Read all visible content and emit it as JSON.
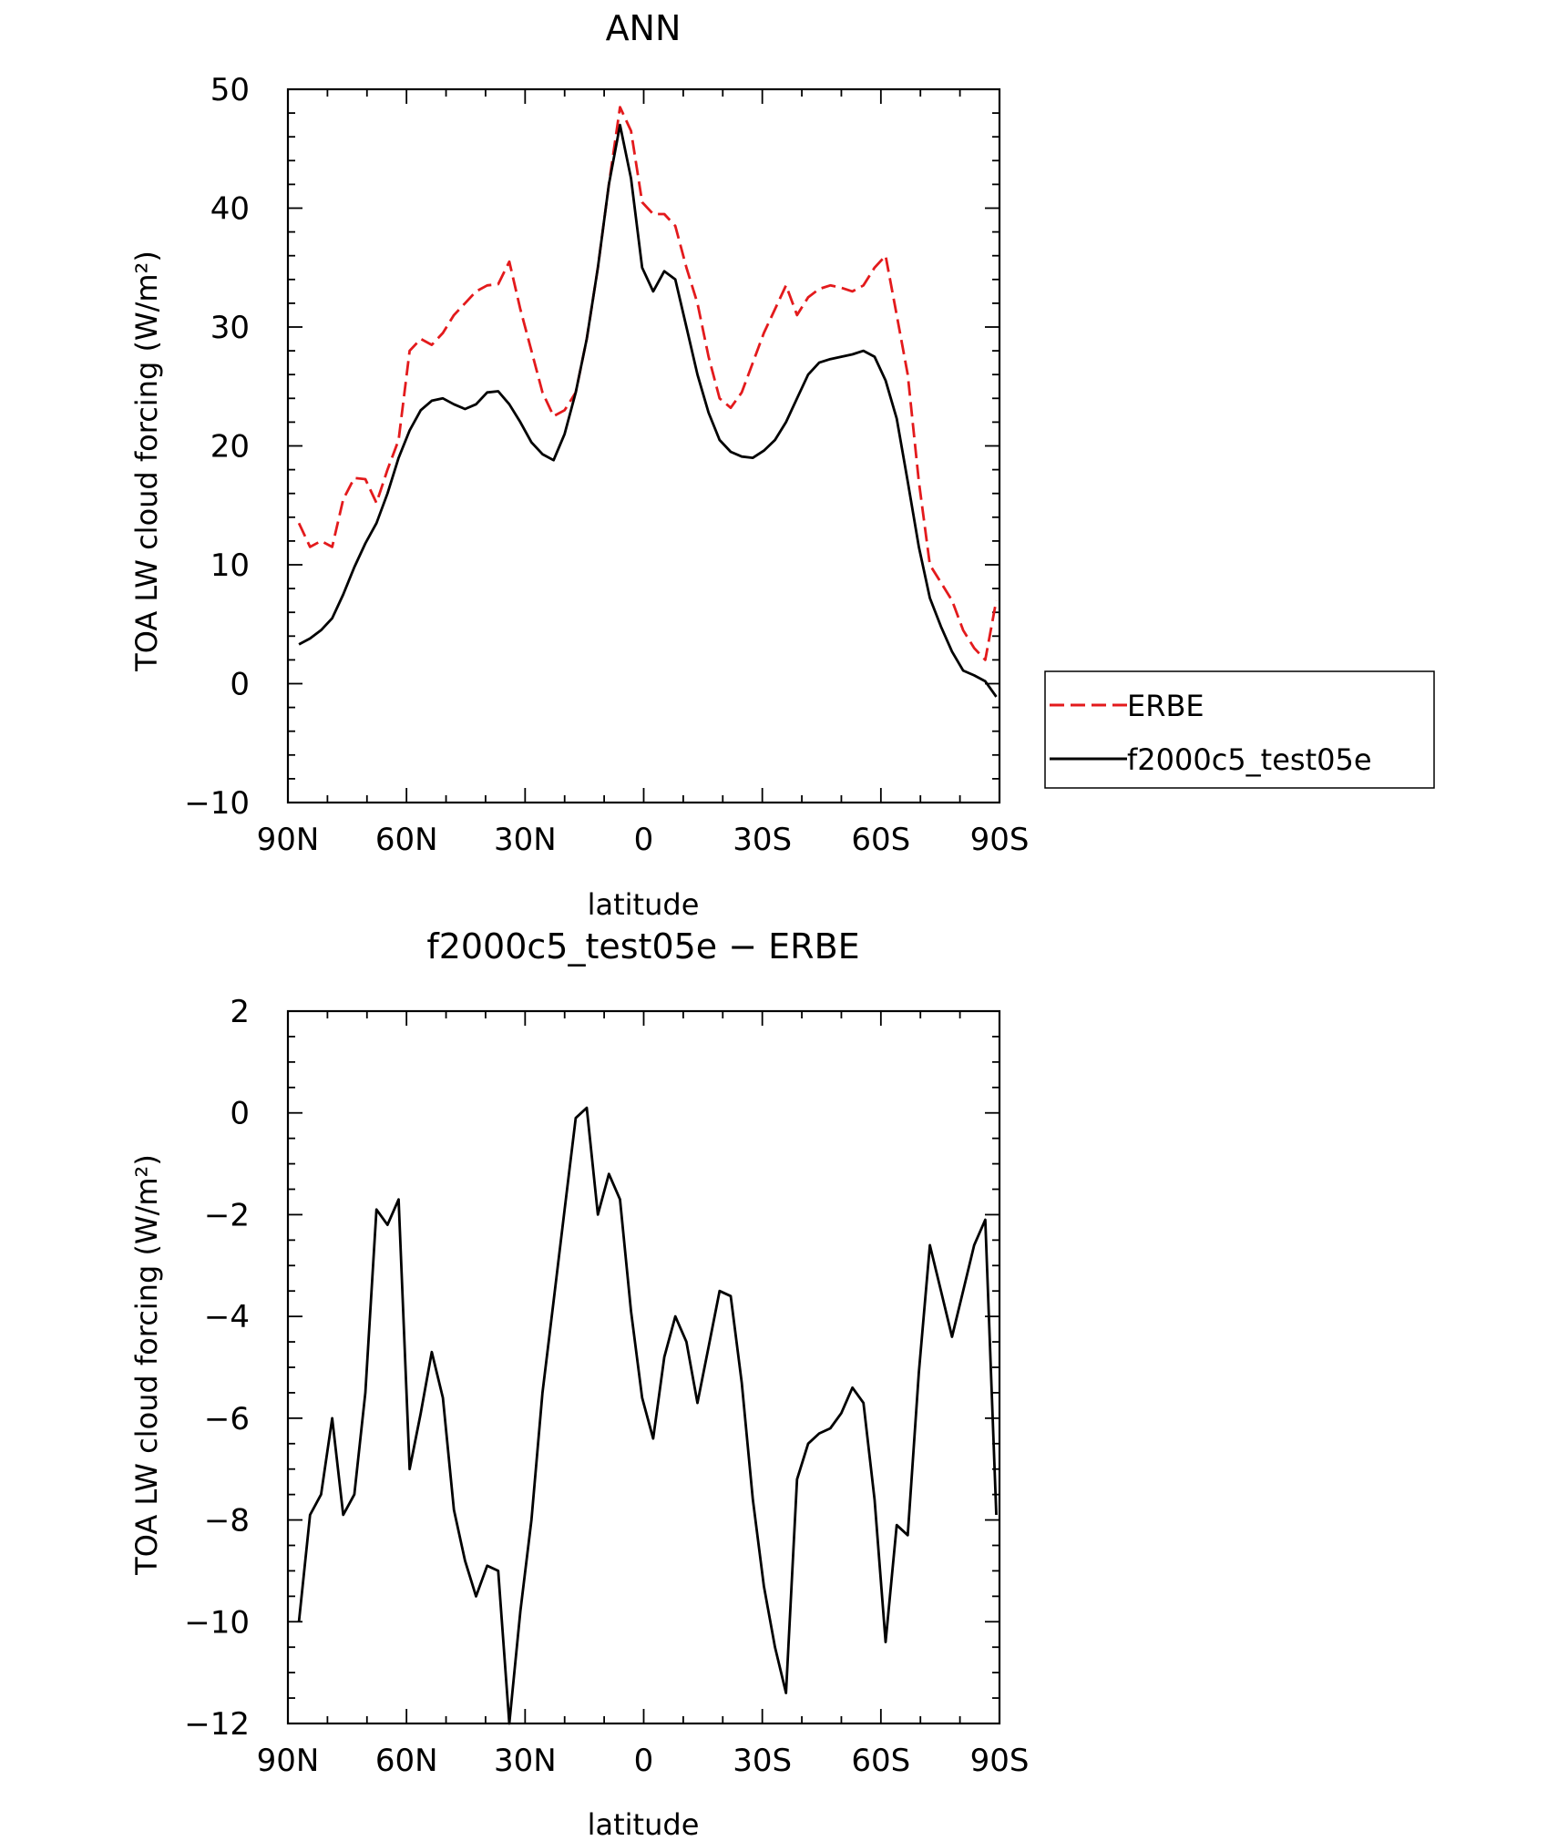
{
  "chart_data": [
    {
      "type": "line",
      "title": "ANN",
      "xlabel": "latitude",
      "ylabel": "TOA LW cloud forcing (W/m²)",
      "xlim": [
        90,
        -90
      ],
      "ylim": [
        -10,
        50
      ],
      "x_ticks": [
        90,
        60,
        30,
        0,
        -30,
        -60,
        -90
      ],
      "x_tick_labels": [
        "90N",
        "60N",
        "30N",
        "0",
        "30S",
        "60S",
        "90S"
      ],
      "y_ticks": [
        -10,
        0,
        10,
        20,
        30,
        40,
        50
      ],
      "y_tick_labels": [
        "−10",
        "0",
        "10",
        "20",
        "30",
        "40",
        "50"
      ],
      "grid": false,
      "legend_position": "right",
      "x": [
        87.2,
        84.4,
        81.6,
        78.8,
        76.0,
        73.2,
        70.4,
        67.6,
        64.8,
        62.0,
        59.2,
        56.4,
        53.6,
        50.8,
        48.0,
        45.2,
        42.4,
        39.6,
        36.8,
        34.0,
        31.2,
        28.4,
        25.6,
        22.8,
        20.0,
        17.2,
        14.4,
        11.6,
        8.8,
        6.0,
        3.2,
        0.4,
        -2.4,
        -5.2,
        -8.0,
        -10.8,
        -13.6,
        -16.4,
        -19.2,
        -22.0,
        -24.8,
        -27.6,
        -30.4,
        -33.2,
        -36.0,
        -38.8,
        -41.6,
        -44.4,
        -47.2,
        -50.0,
        -52.8,
        -55.6,
        -58.4,
        -61.2,
        -64.0,
        -66.8,
        -69.6,
        -72.4,
        -75.2,
        -78.0,
        -80.8,
        -83.6,
        -86.4,
        -89.2
      ],
      "series": [
        {
          "name": "ERBE",
          "color": "#e31a1c",
          "dash": "dashed",
          "values": [
            13.5,
            11.5,
            12.0,
            11.5,
            15.5,
            17.3,
            17.2,
            15.2,
            18.0,
            20.5,
            28.0,
            29.0,
            28.5,
            29.5,
            31.0,
            32.0,
            33.0,
            33.5,
            33.6,
            35.5,
            31.5,
            28.0,
            24.5,
            22.5,
            23.0,
            24.5,
            29.0,
            35.0,
            42.0,
            48.5,
            46.5,
            40.5,
            39.5,
            39.5,
            38.5,
            35.0,
            32.0,
            27.5,
            24.0,
            23.2,
            24.5,
            27.0,
            29.5,
            31.5,
            33.5,
            31.0,
            32.5,
            33.2,
            33.5,
            33.3,
            33.0,
            33.5,
            35.0,
            36.0,
            31.0,
            26.0,
            17.0,
            10.0,
            8.5,
            7.0,
            4.5,
            3.0,
            2.0,
            7.0
          ]
        },
        {
          "name": "f2000c5_test05e",
          "color": "#000000",
          "dash": "solid",
          "values": [
            3.3,
            3.8,
            4.5,
            5.5,
            7.5,
            9.8,
            11.8,
            13.5,
            16.0,
            19.0,
            21.3,
            23.0,
            23.8,
            24.0,
            23.5,
            23.1,
            23.5,
            24.5,
            24.6,
            23.5,
            22.0,
            20.3,
            19.3,
            18.8,
            21.0,
            24.5,
            29.0,
            35.0,
            42.0,
            47.0,
            42.5,
            35.0,
            33.0,
            34.7,
            34.0,
            30.0,
            26.0,
            22.8,
            20.5,
            19.5,
            19.1,
            19.0,
            19.6,
            20.5,
            22.0,
            24.0,
            26.0,
            27.0,
            27.3,
            27.5,
            27.7,
            28.0,
            27.5,
            25.5,
            22.3,
            17.0,
            11.5,
            7.2,
            4.8,
            2.7,
            1.1,
            0.7,
            0.2,
            -1.1
          ]
        }
      ]
    },
    {
      "type": "line",
      "title": "f2000c5_test05e − ERBE",
      "xlabel": "latitude",
      "ylabel": "TOA LW cloud forcing (W/m²)",
      "xlim": [
        90,
        -90
      ],
      "ylim": [
        -12,
        2
      ],
      "x_ticks": [
        90,
        60,
        30,
        0,
        -30,
        -60,
        -90
      ],
      "x_tick_labels": [
        "90N",
        "60N",
        "30N",
        "0",
        "30S",
        "60S",
        "90S"
      ],
      "y_ticks": [
        -12,
        -10,
        -8,
        -6,
        -4,
        -2,
        0,
        2
      ],
      "y_tick_labels": [
        "−12",
        "−10",
        "−8",
        "−6",
        "−4",
        "−2",
        "0",
        "2"
      ],
      "grid": false,
      "x": [
        87.2,
        84.4,
        81.6,
        78.8,
        76.0,
        73.2,
        70.4,
        67.6,
        64.8,
        62.0,
        59.2,
        56.4,
        53.6,
        50.8,
        48.0,
        45.2,
        42.4,
        39.6,
        36.8,
        34.0,
        31.2,
        28.4,
        25.6,
        22.8,
        20.0,
        17.2,
        14.4,
        11.6,
        8.8,
        6.0,
        3.2,
        0.4,
        -2.4,
        -5.2,
        -8.0,
        -10.8,
        -13.6,
        -16.4,
        -19.2,
        -22.0,
        -24.8,
        -27.6,
        -30.4,
        -33.2,
        -36.0,
        -38.8,
        -41.6,
        -44.4,
        -47.2,
        -50.0,
        -52.8,
        -55.6,
        -58.4,
        -61.2,
        -64.0,
        -66.8,
        -69.6,
        -72.4,
        -75.2,
        -78.0,
        -80.8,
        -83.6,
        -86.4,
        -89.2
      ],
      "series": [
        {
          "color": "#000000",
          "dash": "solid",
          "values": [
            -10.0,
            -7.9,
            -7.5,
            -6.0,
            -7.9,
            -7.5,
            -5.5,
            -1.9,
            -2.2,
            -1.7,
            -7.0,
            -5.9,
            -4.7,
            -5.6,
            -7.8,
            -8.8,
            -9.5,
            -8.9,
            -9.0,
            -12.0,
            -9.8,
            -8.0,
            -5.5,
            -3.7,
            -1.9,
            -0.1,
            0.1,
            -2.0,
            -1.2,
            -1.7,
            -3.9,
            -5.6,
            -6.4,
            -4.8,
            -4.0,
            -4.5,
            -5.7,
            -4.6,
            -3.5,
            -3.6,
            -5.3,
            -7.6,
            -9.3,
            -10.5,
            -11.4,
            -7.2,
            -6.5,
            -6.3,
            -6.2,
            -5.9,
            -5.4,
            -5.7,
            -7.6,
            -10.4,
            -8.1,
            -8.3,
            -5.1,
            -2.6,
            -3.5,
            -4.4,
            -3.5,
            -2.6,
            -2.1,
            -7.9
          ]
        }
      ]
    }
  ]
}
